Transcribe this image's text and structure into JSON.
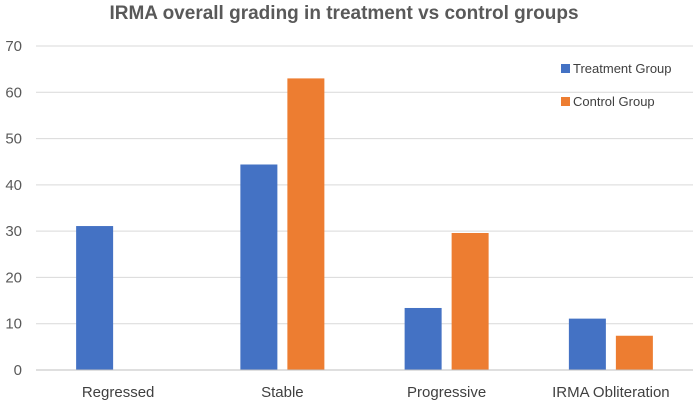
{
  "chart_data": {
    "type": "bar",
    "title": "IRMA overall grading in treatment vs control groups",
    "categories": [
      "Regressed",
      "Stable",
      "Progressive",
      "IRMA Obliteration"
    ],
    "series": [
      {
        "name": "Treatment Group",
        "color": "#4472C4",
        "values": [
          31.1,
          44.4,
          13.4,
          11.1
        ]
      },
      {
        "name": "Control Group",
        "color": "#ED7D31",
        "values": [
          0,
          63.0,
          29.6,
          7.4
        ]
      }
    ],
    "xlabel": "",
    "ylabel": "",
    "ylim": [
      0,
      70
    ],
    "yticks": [
      0,
      10,
      20,
      30,
      40,
      50,
      60,
      70
    ],
    "grid": true,
    "legend_position": "top-right"
  }
}
